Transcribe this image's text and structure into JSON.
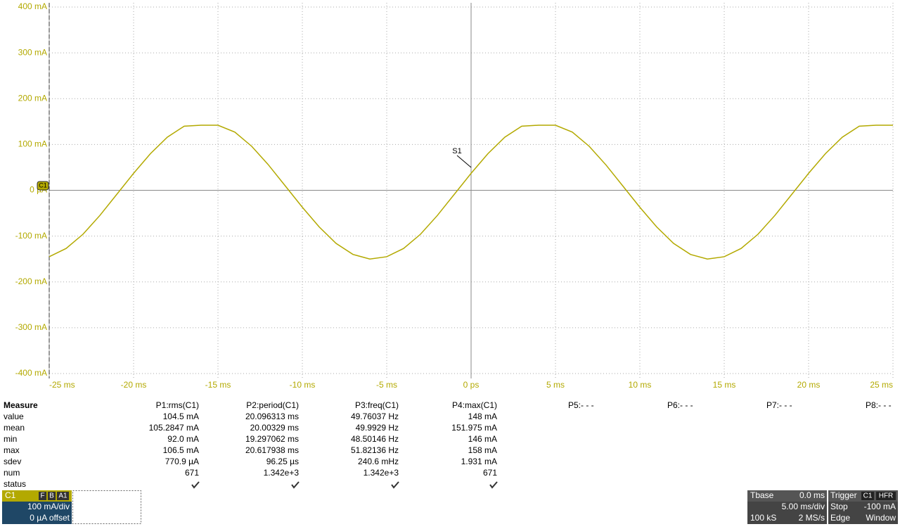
{
  "chart_data": {
    "type": "line",
    "color": "#b3a900",
    "grid": true,
    "trace_label": "C1",
    "annotation": "S1",
    "x": [
      -25,
      -24,
      -23,
      -22,
      -21,
      -20,
      -19,
      -18,
      -17,
      -16,
      -15,
      -14,
      -13,
      -12,
      -11,
      -10,
      -9,
      -8,
      -7,
      -6,
      -5,
      -4,
      -3,
      -2,
      -1,
      0,
      1,
      2,
      3,
      4,
      5,
      6,
      7,
      8,
      9,
      10,
      11,
      12,
      13,
      14,
      15,
      16,
      17,
      18,
      19,
      20,
      21,
      22,
      23,
      24,
      25
    ],
    "values": [
      -145,
      -127,
      -96,
      -55,
      -9,
      37,
      80,
      116,
      140,
      142,
      142,
      127,
      96,
      55,
      9,
      -37,
      -80,
      -116,
      -140,
      -150,
      -145,
      -127,
      -96,
      -55,
      -9,
      37,
      80,
      116,
      140,
      142,
      142,
      127,
      96,
      55,
      9,
      -37,
      -80,
      -116,
      -140,
      -150,
      -145,
      -127,
      -96,
      -55,
      -9,
      37,
      80,
      116,
      140,
      142,
      142
    ],
    "xlim": [
      -25,
      25
    ],
    "xticks": [
      {
        "value": -25,
        "label": "-25 ms"
      },
      {
        "value": -20,
        "label": "-20 ms"
      },
      {
        "value": -15,
        "label": "-15 ms"
      },
      {
        "value": -10,
        "label": "-10 ms"
      },
      {
        "value": -5,
        "label": "-5 ms"
      },
      {
        "value": 0,
        "label": "0 ps"
      },
      {
        "value": 5,
        "label": "5 ms"
      },
      {
        "value": 10,
        "label": "10 ms"
      },
      {
        "value": 15,
        "label": "15 ms"
      },
      {
        "value": 20,
        "label": "20 ms"
      },
      {
        "value": 25,
        "label": "25 ms"
      }
    ],
    "ylim": [
      -400,
      400
    ],
    "yticks": [
      {
        "value": 400,
        "label": "400 mA"
      },
      {
        "value": 300,
        "label": "300 mA"
      },
      {
        "value": 200,
        "label": "200 mA"
      },
      {
        "value": 100,
        "label": "100 mA"
      },
      {
        "value": 0,
        "label": "0 µA"
      },
      {
        "value": -100,
        "label": "-100 mA"
      },
      {
        "value": -200,
        "label": "-200 mA"
      },
      {
        "value": -300,
        "label": "-300 mA"
      },
      {
        "value": -400,
        "label": "-400 mA"
      }
    ]
  },
  "measure": {
    "title": "Measure",
    "headers": [
      "P1:rms(C1)",
      "P2:period(C1)",
      "P3:freq(C1)",
      "P4:max(C1)",
      "P5:- - -",
      "P6:- - -",
      "P7:- - -",
      "P8:- - -"
    ],
    "rows": [
      {
        "label": "value",
        "cells": [
          "104.5 mA",
          "20.096313 ms",
          "49.76037 Hz",
          "148 mA"
        ]
      },
      {
        "label": "mean",
        "cells": [
          "105.2847 mA",
          "20.00329 ms",
          "49.9929 Hz",
          "151.975 mA"
        ]
      },
      {
        "label": "min",
        "cells": [
          "92.0 mA",
          "19.297062 ms",
          "48.50146 Hz",
          "146 mA"
        ]
      },
      {
        "label": "max",
        "cells": [
          "106.5 mA",
          "20.617938 ms",
          "51.82136 Hz",
          "158 mA"
        ]
      },
      {
        "label": "sdev",
        "cells": [
          "770.9 µA",
          "96.25 µs",
          "240.6 mHz",
          "1.931 mA"
        ]
      },
      {
        "label": "num",
        "cells": [
          "671",
          "1.342e+3",
          "1.342e+3",
          "671"
        ]
      },
      {
        "label": "status",
        "cells": []
      }
    ]
  },
  "channel": {
    "name": "C1",
    "badges": [
      "F",
      "B",
      "A1"
    ],
    "scale": "100 mA/div",
    "offset": "0 µA offset"
  },
  "timebase": {
    "title": "Tbase",
    "delay": "0.0 ms",
    "scale": "5.00 ms/div",
    "samples": "100 kS",
    "rate": "2 MS/s"
  },
  "trigger": {
    "title": "Trigger",
    "source": "C1",
    "coupling": "HFR",
    "mode": "Stop",
    "level": "-100 mA",
    "type": "Edge",
    "slope": "Window"
  }
}
